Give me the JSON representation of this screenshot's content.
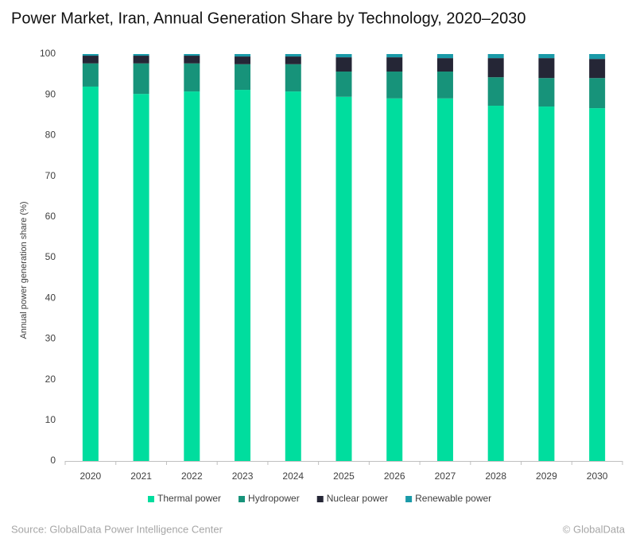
{
  "chart_data": {
    "type": "stacked_bar",
    "title": "Power Market, Iran, Annual Generation Share by Technology, 2020–2030",
    "y_label": "Annual power generation share (%)",
    "categories": [
      "2020",
      "2021",
      "2022",
      "2023",
      "2024",
      "2025",
      "2026",
      "2027",
      "2028",
      "2029",
      "2030"
    ],
    "series": [
      {
        "name": "Thermal power",
        "color": "#00dd9e",
        "values": [
          92.0,
          90.2,
          90.8,
          91.2,
          90.8,
          89.5,
          89.1,
          89.1,
          87.3,
          87.1,
          86.7
        ]
      },
      {
        "name": "Hydropower",
        "color": "#17937a",
        "values": [
          5.7,
          7.5,
          6.9,
          6.3,
          6.7,
          6.2,
          6.6,
          6.6,
          7.0,
          7.0,
          7.4
        ]
      },
      {
        "name": "Nuclear power",
        "color": "#252636",
        "values": [
          1.9,
          1.9,
          1.9,
          1.9,
          1.9,
          3.5,
          3.5,
          3.3,
          4.7,
          4.9,
          4.7
        ]
      },
      {
        "name": "Renewable power",
        "color": "#1a9aa8",
        "values": [
          0.4,
          0.4,
          0.4,
          0.6,
          0.6,
          0.8,
          0.8,
          1.0,
          1.0,
          1.0,
          1.2
        ]
      }
    ],
    "ylim": [
      0,
      100
    ],
    "yticks": [
      0,
      10,
      20,
      30,
      40,
      50,
      60,
      70,
      80,
      90,
      100
    ],
    "grid": false,
    "legend": "bottom",
    "source": "Source: GlobalData Power Intelligence Center",
    "credit": "© GlobalData"
  }
}
